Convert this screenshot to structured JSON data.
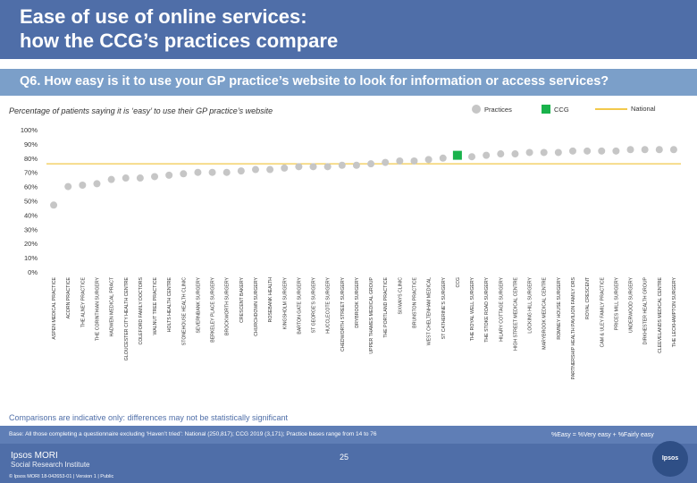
{
  "header": {
    "title_line1": "Ease of use of online services:",
    "title_line2": "how the CCG’s practices compare"
  },
  "question": "Q6. How easy is it to use your GP practice’s website to look for information or access services?",
  "subtitle": "Percentage of patients saying it is ‘easy’ to use their GP practice’s website",
  "legend": {
    "practices": "Practices",
    "ccg": "CCG",
    "national": "National"
  },
  "colors": {
    "header": "#4f6ea8",
    "question_bar": "#7b9fc9",
    "practice_dot": "#c6c6c6",
    "ccg_marker": "#19b24b",
    "national_line": "#f2c94c"
  },
  "chart_data": {
    "type": "scatter",
    "ylim": [
      0,
      100
    ],
    "yticks": [
      "0%",
      "10%",
      "20%",
      "30%",
      "40%",
      "50%",
      "60%",
      "70%",
      "80%",
      "90%",
      "100%"
    ],
    "national_value": 76,
    "ccg_category": "CCG",
    "categories": [
      "ASPEN MEDICAL PRACTICE",
      "ACORN PRACTICE",
      "THE ALNEY PRACTICE",
      "THE CORINTHIAN SURGERY",
      "HADWEN MEDICAL PRACT",
      "GLOUCESTER CITY HEALTH CENTRE",
      "COLEFORD FAMILY DOCTORS",
      "WALNUT TREE PRACTICE",
      "HOLTS HEALTH CENTRE",
      "STONEHOUSE HEALTH CLINIC",
      "SEVERNBANK SURGERY",
      "BERKELEY PLACE SURGERY",
      "BROCKWORTH SURGERY",
      "CRESCENT BAKERY",
      "CHURCHDOWN SURGERY",
      "ROSEBANK HEALTH",
      "KINGSHOLM SURGERY",
      "BARTON GATE SURGERY",
      "ST GEORGE’S SURGERY",
      "HUCCLECOTE SURGERY",
      "CHEDWORTH STREET SURGERY",
      "DRYBROOK SURGERY",
      "UPPER THAMES MEDICAL GROUP",
      "THE PORTLAND PRACTICE",
      "SIXWAYS CLINIC",
      "BRUNSTON PRACTICE",
      "WEST CHELTENHAM MEDICAL",
      "ST CATHERINE’S SURGERY",
      "CCG",
      "THE ROYAL WELL SURGERY",
      "THE STOKE ROAD SURGERY",
      "HILARY COTTAGE SURGERY",
      "HIGH STREET MEDICAL CENTRE",
      "LOCKING HILL SURGERY",
      "MARYBROOK MEDICAL CENTRE",
      "ROMNEY HOUSE SURGERY",
      "PARTNERSHIP HEALTH PAVILION FAMILY DRS",
      "ROYAL CRESCENT",
      "CAM & ULEY FAMILY PRACTICE",
      "PRICES MILL SURGERY",
      "UNDERWOOD SURGERY",
      "DIRKHESTER HEALTH GROUP",
      "CLEEVELANDS MEDICAL CENTRE",
      "THE LECKHAMPTON SURGERY"
    ],
    "values": [
      47,
      60,
      61,
      62,
      65,
      66,
      66,
      67,
      68,
      69,
      70,
      70,
      70,
      71,
      72,
      72,
      73,
      74,
      74,
      74,
      75,
      75,
      76,
      77,
      78,
      78,
      79,
      80,
      82,
      81,
      82,
      83,
      83,
      84,
      84,
      84,
      85,
      85,
      85,
      85,
      86,
      86,
      86,
      86
    ]
  },
  "note": "Comparisons are indicative only: differences may not be statistically significant",
  "footer": {
    "base": "Base: All those completing a questionnaire excluding ‘Haven’t tried’: National (250,817); CCG 2019 (3,171); Practice bases range from 14 to 76",
    "easy_def": "%Easy = %Very easy + %Fairly easy",
    "logo_line1": "Ipsos MORI",
    "logo_line2": "Social Research Institute",
    "copyright": "© Ipsos MORI 18-042653-01 | Version 1 | Public",
    "page": "25",
    "brand": "Ipsos"
  }
}
